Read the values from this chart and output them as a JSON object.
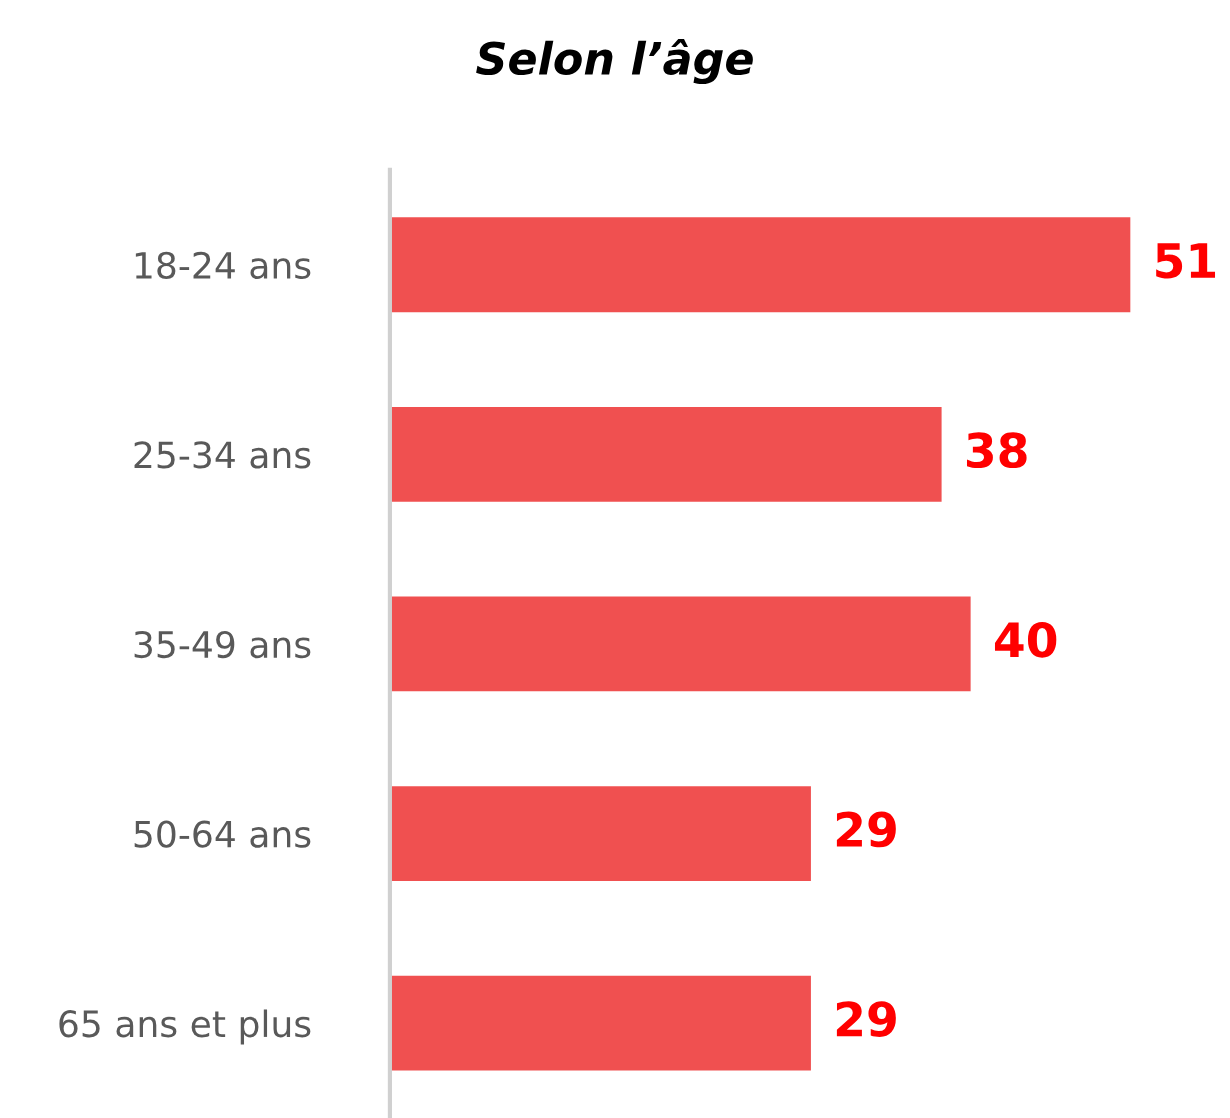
{
  "chart_data": {
    "type": "bar",
    "orientation": "horizontal",
    "title": "Selon l’âge",
    "categories": [
      "18-24 ans",
      "25-34 ans",
      "35-49 ans",
      "50-64 ans",
      "65 ans et plus"
    ],
    "values": [
      51,
      38,
      40,
      29,
      29
    ],
    "color": "#f05050",
    "data_labels": true,
    "tick_labels": "y"
  }
}
